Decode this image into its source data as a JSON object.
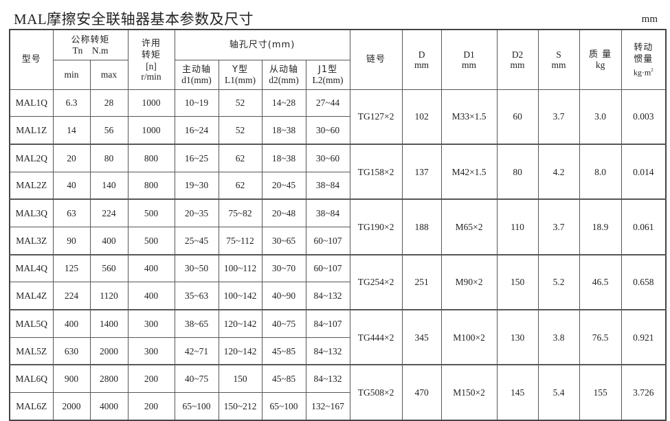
{
  "title": "MAL摩擦安全联轴器基本参数及尺寸",
  "unit": "mm",
  "header": {
    "model": "型号",
    "torque": "公称转矩",
    "torque_unit": "Tn　N.m",
    "min": "min",
    "max": "max",
    "speed": "许用转矩",
    "speed_unit1": "[n]",
    "speed_unit2": "r/min",
    "bore": "轴孔尺寸(mm)",
    "d1_a": "主动轴",
    "d1_b": "d1(mm)",
    "l1_a": "Y型",
    "l1_b": "L1(mm)",
    "d2_a": "从动轴",
    "d2_b": "d2(mm)",
    "l2_a": "J1型",
    "l2_b": "L2(mm)",
    "chain": "链号",
    "D_a": "D",
    "D_b": "mm",
    "D1_a": "D1",
    "D1_b": "mm",
    "D2_a": "D2",
    "D2_b": "mm",
    "S_a": "S",
    "S_b": "mm",
    "mass_a": "质 量",
    "mass_b": "kg",
    "inertia_a": "转动惯量",
    "inertia_b": "kg·m",
    "inertia_sup": "2"
  },
  "groups": [
    {
      "chain": "TG127×2",
      "D": "102",
      "D1": "M33×1.5",
      "D2": "60",
      "S": "3.7",
      "mass": "3.0",
      "inertia": "0.003",
      "rows": [
        [
          "MAL1Q",
          "6.3",
          "28",
          "1000",
          "10~19",
          "52",
          "14~28",
          "27~44"
        ],
        [
          "MAL1Z",
          "14",
          "56",
          "1000",
          "16~24",
          "52",
          "18~38",
          "30~60"
        ]
      ]
    },
    {
      "chain": "TG158×2",
      "D": "137",
      "D1": "M42×1.5",
      "D2": "80",
      "S": "4.2",
      "mass": "8.0",
      "inertia": "0.014",
      "rows": [
        [
          "MAL2Q",
          "20",
          "80",
          "800",
          "16~25",
          "62",
          "18~38",
          "30~60"
        ],
        [
          "MAL2Z",
          "40",
          "140",
          "800",
          "19~30",
          "62",
          "20~45",
          "38~84"
        ]
      ]
    },
    {
      "chain": "TG190×2",
      "D": "188",
      "D1": "M65×2",
      "D2": "110",
      "S": "3.7",
      "mass": "18.9",
      "inertia": "0.061",
      "rows": [
        [
          "MAL3Q",
          "63",
          "224",
          "500",
          "20~35",
          "75~82",
          "20~48",
          "38~84"
        ],
        [
          "MAL3Z",
          "90",
          "400",
          "500",
          "25~45",
          "75~112",
          "30~65",
          "60~107"
        ]
      ]
    },
    {
      "chain": "TG254×2",
      "D": "251",
      "D1": "M90×2",
      "D2": "150",
      "S": "5.2",
      "mass": "46.5",
      "inertia": "0.658",
      "rows": [
        [
          "MAL4Q",
          "125",
          "560",
          "400",
          "30~50",
          "100~112",
          "30~70",
          "60~107"
        ],
        [
          "MAL4Z",
          "224",
          "1120",
          "400",
          "35~63",
          "100~142",
          "40~90",
          "84~132"
        ]
      ]
    },
    {
      "chain": "TG444×2",
      "D": "345",
      "D1": "M100×2",
      "D2": "130",
      "S": "3.8",
      "mass": "76.5",
      "inertia": "0.921",
      "rows": [
        [
          "MAL5Q",
          "400",
          "1400",
          "300",
          "38~65",
          "120~142",
          "40~75",
          "84~107"
        ],
        [
          "MAL5Z",
          "630",
          "2000",
          "300",
          "42~71",
          "120~142",
          "45~85",
          "84~132"
        ]
      ]
    },
    {
      "chain": "TG508×2",
      "D": "470",
      "D1": "M150×2",
      "D2": "145",
      "S": "5.4",
      "mass": "155",
      "inertia": "3.726",
      "rows": [
        [
          "MAL6Q",
          "900",
          "2800",
          "200",
          "40~75",
          "150",
          "45~85",
          "84~132"
        ],
        [
          "MAL6Z",
          "2000",
          "4000",
          "200",
          "65~100",
          "150~212",
          "65~100",
          "132~167"
        ]
      ]
    }
  ]
}
